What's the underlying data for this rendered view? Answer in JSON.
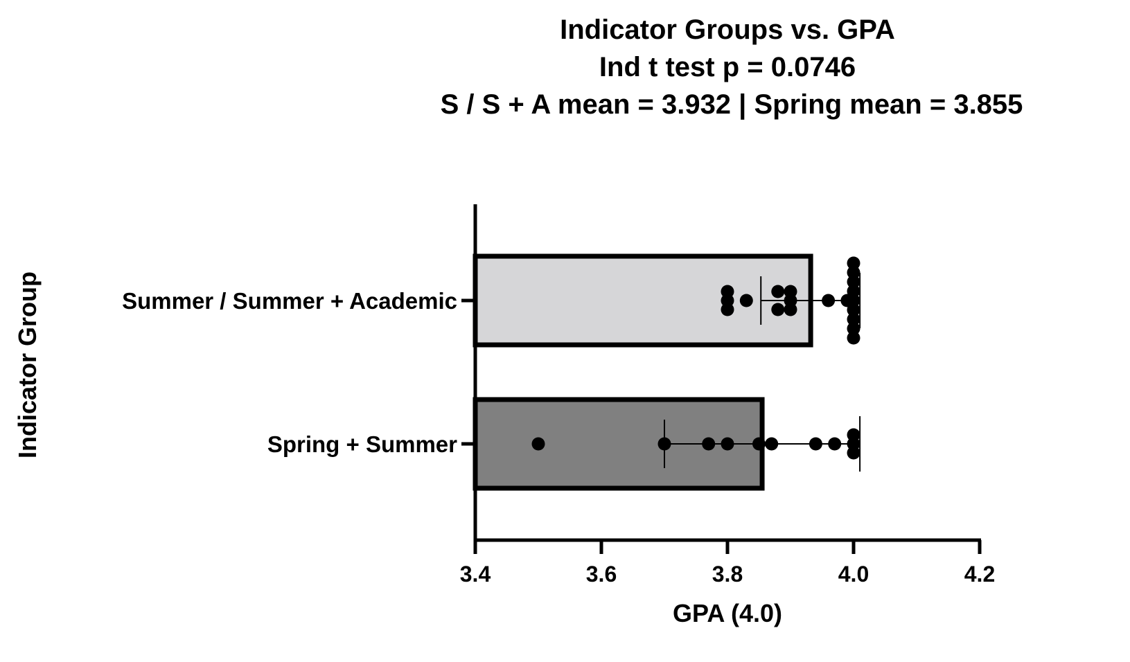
{
  "chart_data": {
    "type": "bar",
    "orientation": "horizontal",
    "title_lines": [
      "Indicator Groups vs. GPA",
      "Ind t test p =  0.0746",
      "S / S + A mean = 3.932  | Spring mean = 3.855"
    ],
    "xlabel": "GPA (4.0)",
    "ylabel": "Indicator Group",
    "xlim": [
      3.4,
      4.2
    ],
    "xticks": [
      "3.4",
      "3.6",
      "3.8",
      "4.0",
      "4.2"
    ],
    "grid": false,
    "categories": [
      "Summer / Summer + Academic",
      "Spring + Summer"
    ],
    "series": [
      {
        "name": "Summer / Summer + Academic",
        "mean": 3.932,
        "sd": 0.079,
        "color": "#d6d6d8",
        "points": [
          3.8,
          3.8,
          3.8,
          3.83,
          3.88,
          3.88,
          3.9,
          3.9,
          3.9,
          3.96,
          3.99,
          4.0,
          4.0,
          4.0,
          4.0,
          4.0,
          4.0,
          4.0,
          4.0,
          4.0
        ]
      },
      {
        "name": "Spring + Summer",
        "mean": 3.855,
        "sd": 0.155,
        "color": "#808080",
        "points": [
          3.5,
          3.7,
          3.77,
          3.8,
          3.85,
          3.87,
          3.94,
          3.97,
          4.0,
          4.0,
          4.0
        ]
      }
    ]
  }
}
